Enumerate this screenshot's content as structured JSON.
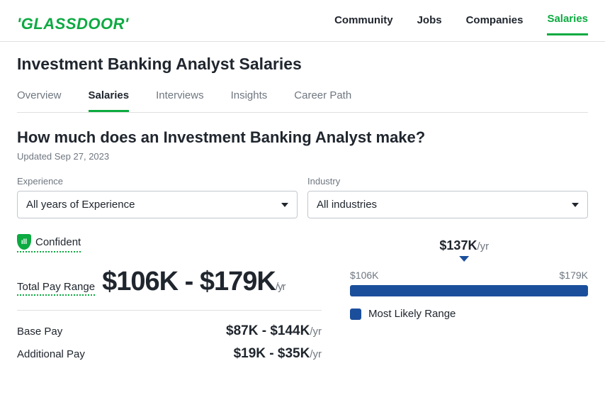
{
  "brand": {
    "name": "'GLASSDOOR'",
    "color": "#0caa41"
  },
  "topnav": {
    "items": [
      "Community",
      "Jobs",
      "Companies",
      "Salaries"
    ],
    "active_index": 3,
    "active_color": "#0caa41"
  },
  "page_title": "Investment Banking Analyst Salaries",
  "subtabs": {
    "items": [
      "Overview",
      "Salaries",
      "Interviews",
      "Insights",
      "Career Path"
    ],
    "active_index": 1
  },
  "headline": "How much does an Investment Banking Analyst make?",
  "updated": "Updated Sep 27, 2023",
  "filters": {
    "experience": {
      "label": "Experience",
      "value": "All years of Experience"
    },
    "industry": {
      "label": "Industry",
      "value": "All industries"
    }
  },
  "confidence": {
    "label": "Confident",
    "icon_glyph": "ıll"
  },
  "total_pay": {
    "label": "Total Pay Range",
    "value": "$106K - $179K",
    "unit": "/yr"
  },
  "base_pay": {
    "label": "Base Pay",
    "value": "$87K - $144K",
    "unit": "/yr"
  },
  "additional_pay": {
    "label": "Additional Pay",
    "value": "$19K - $35K",
    "unit": "/yr"
  },
  "range_chart": {
    "center_value": "$137K",
    "center_unit": "/yr",
    "min_label": "$106K",
    "max_label": "$179K",
    "marker_position_pct": 48,
    "bar_color": "#1b4f9c",
    "legend": "Most Likely Range"
  }
}
